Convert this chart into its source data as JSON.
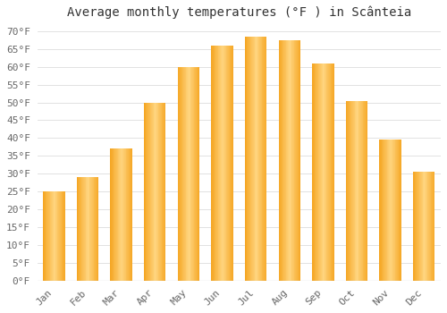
{
  "title": "Average monthly temperatures (°F ) in Scânteia",
  "months": [
    "Jan",
    "Feb",
    "Mar",
    "Apr",
    "May",
    "Jun",
    "Jul",
    "Aug",
    "Sep",
    "Oct",
    "Nov",
    "Dec"
  ],
  "values": [
    25,
    29,
    37,
    50,
    60,
    66,
    68.5,
    67.5,
    61,
    50.5,
    39.5,
    30.5
  ],
  "bar_color_dark": "#F5A623",
  "bar_color_light": "#FFD580",
  "background_color": "#FFFFFF",
  "grid_color": "#DDDDDD",
  "ylim": [
    0,
    72
  ],
  "yticks": [
    0,
    5,
    10,
    15,
    20,
    25,
    30,
    35,
    40,
    45,
    50,
    55,
    60,
    65,
    70
  ],
  "title_fontsize": 10,
  "tick_fontsize": 8,
  "font_family": "monospace"
}
